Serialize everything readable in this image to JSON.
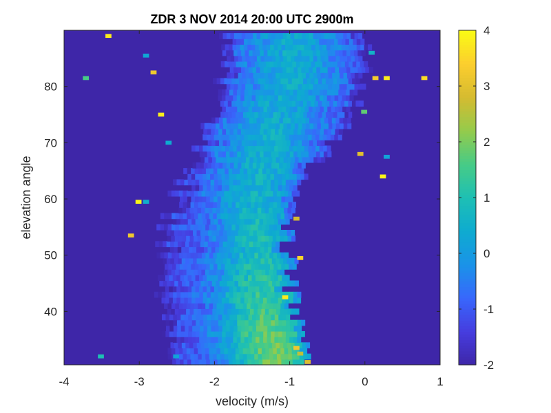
{
  "chart_data": {
    "type": "heatmap",
    "title": "ZDR 3 NOV 2014 20:00 UTC 2900m",
    "xlabel": "velocity (m/s)",
    "ylabel": "elevation angle",
    "xlim": [
      -4,
      1
    ],
    "ylim": [
      30.5,
      90
    ],
    "xticks": [
      -4,
      -3,
      -2,
      -1,
      0,
      1
    ],
    "yticks": [
      40,
      50,
      60,
      70,
      80
    ],
    "colorbar": {
      "limits": [
        -2,
        4
      ],
      "ticks": [
        -2,
        -1,
        0,
        1,
        2,
        3,
        4
      ],
      "colormap": "parula"
    },
    "background_value": -2,
    "elevation_step": 1,
    "velocity_bin_width": 0.05,
    "band": {
      "description_points": [
        {
          "elevation": 31,
          "v_min": -2.6,
          "v_max": -0.8,
          "v_peak": -1.2,
          "peak_value": 2.0
        },
        {
          "elevation": 35,
          "v_min": -2.65,
          "v_max": -0.85,
          "v_peak": -1.3,
          "peak_value": 1.8
        },
        {
          "elevation": 40,
          "v_min": -2.7,
          "v_max": -0.95,
          "v_peak": -1.35,
          "peak_value": 1.5
        },
        {
          "elevation": 45,
          "v_min": -2.75,
          "v_max": -1.0,
          "v_peak": -1.4,
          "peak_value": 1.2
        },
        {
          "elevation": 50,
          "v_min": -2.7,
          "v_max": -1.05,
          "v_peak": -1.4,
          "peak_value": 1.0
        },
        {
          "elevation": 55,
          "v_min": -2.65,
          "v_max": -1.05,
          "v_peak": -1.45,
          "peak_value": 0.8
        },
        {
          "elevation": 60,
          "v_min": -2.55,
          "v_max": -0.95,
          "v_peak": -1.5,
          "peak_value": 0.6
        },
        {
          "elevation": 65,
          "v_min": -2.35,
          "v_max": -0.75,
          "v_peak": -1.4,
          "peak_value": 0.6
        },
        {
          "elevation": 70,
          "v_min": -2.15,
          "v_max": -0.45,
          "v_peak": -1.3,
          "peak_value": 0.5
        },
        {
          "elevation": 75,
          "v_min": -2.0,
          "v_max": -0.2,
          "v_peak": -1.2,
          "peak_value": 0.4
        },
        {
          "elevation": 80,
          "v_min": -1.95,
          "v_max": -0.05,
          "v_peak": -1.0,
          "peak_value": 0.4
        },
        {
          "elevation": 85,
          "v_min": -1.9,
          "v_max": 0.0,
          "v_peak": -1.0,
          "peak_value": 0.4
        },
        {
          "elevation": 90,
          "v_min": -1.85,
          "v_max": 0.05,
          "v_peak": -1.0,
          "peak_value": 0.3
        }
      ]
    },
    "outlier_pixels": [
      {
        "v": -3.45,
        "elev": 89,
        "value": 3.8
      },
      {
        "v": -2.95,
        "elev": 85.5,
        "value": 0.3
      },
      {
        "v": -2.85,
        "elev": 82.5,
        "value": 3.2
      },
      {
        "v": -3.75,
        "elev": 81.5,
        "value": 1.6
      },
      {
        "v": -2.75,
        "elev": 75,
        "value": 3.8
      },
      {
        "v": -2.65,
        "elev": 70,
        "value": 0.4
      },
      {
        "v": -3.05,
        "elev": 59.5,
        "value": 3.9
      },
      {
        "v": -2.95,
        "elev": 59.5,
        "value": 0.5
      },
      {
        "v": -3.15,
        "elev": 53.5,
        "value": 3.2
      },
      {
        "v": -3.55,
        "elev": 32,
        "value": 1.0
      },
      {
        "v": -2.55,
        "elev": 32,
        "value": 0.2
      },
      {
        "v": 0.1,
        "elev": 81.5,
        "value": 3.3
      },
      {
        "v": 0.25,
        "elev": 81.5,
        "value": 3.8
      },
      {
        "v": 0.75,
        "elev": 81.5,
        "value": 3.6
      },
      {
        "v": 0.05,
        "elev": 86,
        "value": 0.6
      },
      {
        "v": -0.05,
        "elev": 75.5,
        "value": 1.8
      },
      {
        "v": -0.1,
        "elev": 68,
        "value": 3.0
      },
      {
        "v": 0.25,
        "elev": 67.5,
        "value": 0.2
      },
      {
        "v": 0.2,
        "elev": 64,
        "value": 3.9
      },
      {
        "v": -0.95,
        "elev": 56.5,
        "value": 2.8
      },
      {
        "v": -0.9,
        "elev": 49.5,
        "value": 3.5
      },
      {
        "v": -1.1,
        "elev": 42.5,
        "value": 3.8
      },
      {
        "v": -0.95,
        "elev": 33.5,
        "value": 3.2
      },
      {
        "v": -0.8,
        "elev": 31,
        "value": 2.9
      },
      {
        "v": -0.9,
        "elev": 32.5,
        "value": 2.6
      }
    ]
  }
}
